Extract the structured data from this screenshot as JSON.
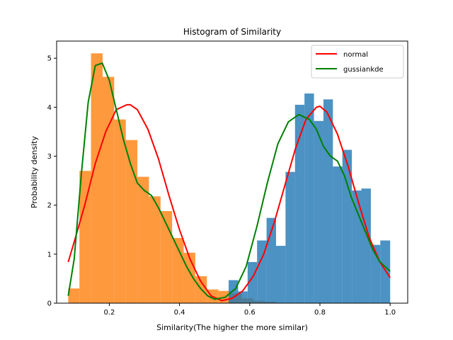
{
  "chart_data": {
    "type": "bar",
    "title": "Histogram of Similarity",
    "xlabel": "Similarity(The higher the more similar)",
    "ylabel": "Probability density",
    "xlim": [
      0.05,
      1.05
    ],
    "ylim": [
      0,
      5.35
    ],
    "xticks": [
      0.2,
      0.4,
      0.6,
      0.8,
      1.0
    ],
    "xtick_labels": [
      "0.2",
      "0.4",
      "0.6",
      "0.8",
      "1.0"
    ],
    "yticks": [
      0,
      1,
      2,
      3,
      4,
      5
    ],
    "ytick_labels": [
      "0",
      "1",
      "2",
      "3",
      "4",
      "5"
    ],
    "legend_position": "top-right",
    "grid": false,
    "histograms": [
      {
        "color": "#ff7f0e",
        "alpha": 0.8,
        "bin_edges": [
          0.083,
          0.115,
          0.148,
          0.181,
          0.214,
          0.247,
          0.28,
          0.313,
          0.346,
          0.379,
          0.412,
          0.445,
          0.478,
          0.511,
          0.544,
          0.577,
          0.61,
          0.643,
          0.676
        ],
        "values": [
          0.3,
          2.7,
          5.1,
          4.62,
          3.75,
          3.33,
          2.58,
          2.18,
          1.88,
          1.33,
          1.03,
          0.55,
          0.28,
          0.25,
          0.2,
          0.1,
          0.05,
          0.03
        ]
      },
      {
        "color": "#1f77b4",
        "alpha": 0.8,
        "bin_edges": [
          0.54,
          0.567,
          0.594,
          0.621,
          0.648,
          0.675,
          0.702,
          0.729,
          0.756,
          0.783,
          0.81,
          0.837,
          0.864,
          0.891,
          0.918,
          0.945,
          0.972,
          1.0
        ],
        "values": [
          0.47,
          0.24,
          0.84,
          1.28,
          1.74,
          1.17,
          2.68,
          4.05,
          4.28,
          3.72,
          4.16,
          2.79,
          3.13,
          2.3,
          2.34,
          1.19,
          1.28
        ]
      }
    ],
    "series": [
      {
        "name": "normal",
        "color": "#ff0000",
        "x": [
          0.083,
          0.1,
          0.13,
          0.16,
          0.19,
          0.22,
          0.25,
          0.26,
          0.28,
          0.31,
          0.34,
          0.37,
          0.4,
          0.43,
          0.46,
          0.49,
          0.52,
          0.55,
          0.58,
          0.61,
          0.64,
          0.67,
          0.7,
          0.73,
          0.76,
          0.79,
          0.8,
          0.82,
          0.85,
          0.88,
          0.91,
          0.94,
          0.97,
          1.0
        ],
        "y": [
          0.84,
          1.25,
          2.0,
          2.85,
          3.5,
          3.95,
          4.05,
          4.05,
          3.95,
          3.55,
          2.95,
          2.2,
          1.5,
          0.9,
          0.45,
          0.15,
          0.05,
          0.1,
          0.25,
          0.55,
          1.0,
          1.65,
          2.4,
          3.15,
          3.75,
          4.0,
          4.02,
          3.9,
          3.45,
          2.8,
          2.05,
          1.35,
          0.85,
          0.52
        ]
      },
      {
        "name": "gussiankde",
        "color": "#008000",
        "x": [
          0.083,
          0.1,
          0.12,
          0.14,
          0.16,
          0.18,
          0.2,
          0.22,
          0.24,
          0.26,
          0.28,
          0.3,
          0.32,
          0.34,
          0.36,
          0.38,
          0.4,
          0.42,
          0.44,
          0.46,
          0.48,
          0.5,
          0.53,
          0.56,
          0.59,
          0.62,
          0.65,
          0.68,
          0.71,
          0.74,
          0.77,
          0.79,
          0.81,
          0.83,
          0.85,
          0.87,
          0.89,
          0.91,
          0.93,
          0.95,
          0.97,
          1.0
        ],
        "y": [
          0.15,
          0.9,
          2.6,
          4.1,
          4.85,
          4.9,
          4.55,
          3.95,
          3.35,
          2.85,
          2.45,
          2.3,
          2.2,
          1.95,
          1.65,
          1.35,
          1.05,
          0.75,
          0.5,
          0.3,
          0.15,
          0.08,
          0.12,
          0.3,
          0.75,
          1.55,
          2.45,
          3.25,
          3.7,
          3.85,
          3.75,
          3.55,
          3.2,
          3.0,
          2.9,
          2.6,
          2.15,
          1.8,
          1.45,
          1.1,
          0.85,
          0.65
        ]
      }
    ]
  }
}
